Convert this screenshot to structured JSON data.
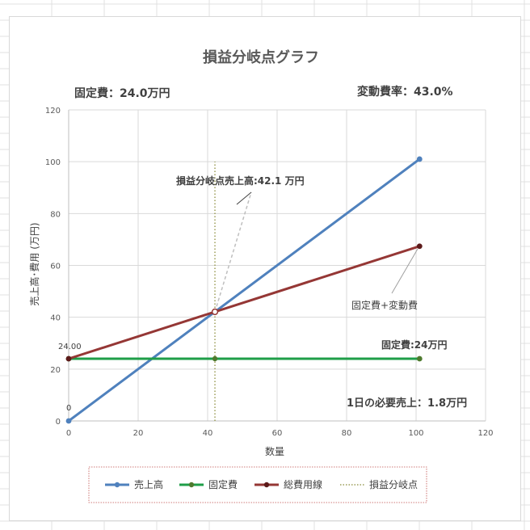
{
  "chart_data": {
    "type": "line",
    "title": "損益分岐点グラフ",
    "xlabel": "数量",
    "ylabel": "売上高･費用 (万円)",
    "xlim": [
      0,
      120
    ],
    "ylim": [
      0,
      120
    ],
    "x_ticks": [
      0,
      20,
      40,
      60,
      80,
      100,
      120
    ],
    "y_ticks": [
      0,
      20,
      40,
      60,
      80,
      100,
      120
    ],
    "grid": true,
    "legend_position": "bottom",
    "series": [
      {
        "name": "売上高",
        "color": "#4f81bd",
        "x": [
          0,
          42.1,
          101
        ],
        "y": [
          0,
          42.1,
          101
        ]
      },
      {
        "name": "固定費",
        "color": "#1f9e48",
        "x": [
          0,
          42.1,
          101
        ],
        "y": [
          24,
          24,
          24
        ]
      },
      {
        "name": "総費用線",
        "color": "#953735",
        "x": [
          0,
          42.1,
          101
        ],
        "y": [
          24,
          42.1,
          67.4
        ]
      },
      {
        "name": "損益分岐点",
        "color": "#9c9d58",
        "style": "dotted",
        "x": [
          42.1,
          42.1
        ],
        "y": [
          0,
          100
        ]
      }
    ],
    "data_labels": [
      {
        "text": "24.00",
        "x": 0,
        "y": 24
      },
      {
        "text": "0",
        "x": 0,
        "y": 0
      }
    ],
    "annotations": {
      "fixed_cost_header": "固定費：24.0万円",
      "variable_rate_header": "変動費率：43.0%",
      "breakeven_sales": "損益分岐点売上高:42.1 万円",
      "total_cost_label": "固定費+変動費",
      "fixed_cost_label": "固定費:24万円",
      "daily_sales": "1日の必要売上：1.8万円"
    }
  }
}
